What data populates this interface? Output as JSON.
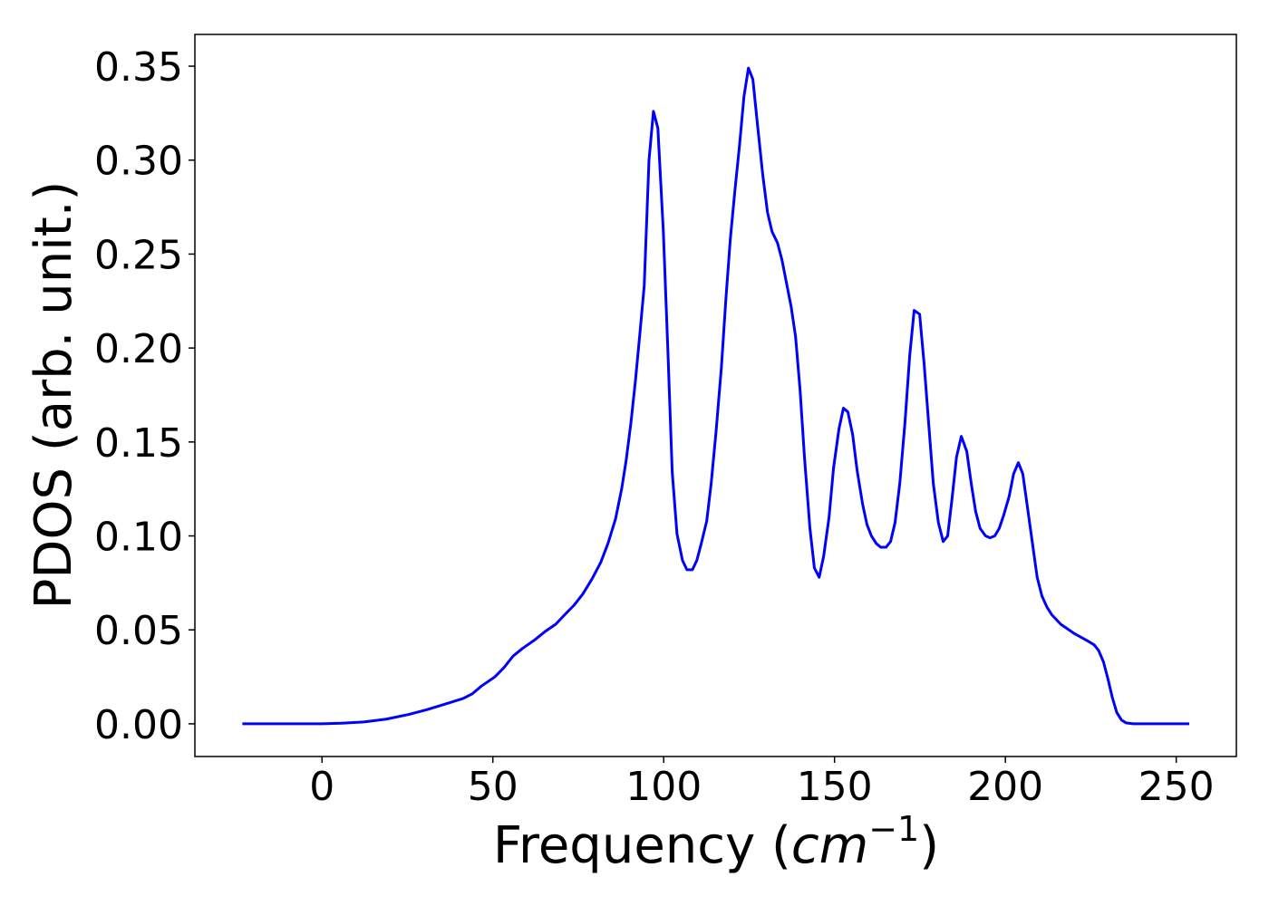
{
  "chart_data": {
    "type": "line",
    "xlabel": [
      "Frequency (",
      "cm",
      "−1",
      ")"
    ],
    "ylabel": "PDOS (arb. unit.)",
    "color": "#0000ff",
    "x": [
      -23.3,
      0,
      5.6,
      12.2,
      18.8,
      25.4,
      30.7,
      36.0,
      41.3,
      44.0,
      46.6,
      50.6,
      53.3,
      55.9,
      58.6,
      62.5,
      65.2,
      68.4,
      71.0,
      73.7,
      76.3,
      79.0,
      81.6,
      83.7,
      85.9,
      87.7,
      89.0,
      90.4,
      91.7,
      93.0,
      94.3,
      95.7,
      97.0,
      98.3,
      99.9,
      101.2,
      102.5,
      103.9,
      105.5,
      106.8,
      108.4,
      109.7,
      111.0,
      112.6,
      113.9,
      115.3,
      116.9,
      118.2,
      119.5,
      120.8,
      122.2,
      123.5,
      124.8,
      126.1,
      127.5,
      129.0,
      130.4,
      131.7,
      133.3,
      134.6,
      135.9,
      137.3,
      138.6,
      139.9,
      141.2,
      142.8,
      144.1,
      145.5,
      146.8,
      148.4,
      149.7,
      151.3,
      152.6,
      153.9,
      155.3,
      156.6,
      158.2,
      159.5,
      160.8,
      162.2,
      163.5,
      165.1,
      166.4,
      167.7,
      169.1,
      170.6,
      172.0,
      173.3,
      174.9,
      176.2,
      177.5,
      178.9,
      180.4,
      181.8,
      183.1,
      184.4,
      185.7,
      187.1,
      188.7,
      190.0,
      191.3,
      192.6,
      194.2,
      195.5,
      196.9,
      198.2,
      199.5,
      201.1,
      202.4,
      203.8,
      205.1,
      206.4,
      208.0,
      209.3,
      210.7,
      212.2,
      213.6,
      216.2,
      220.2,
      224.2,
      226.0,
      227.3,
      228.7,
      230.0,
      231.3,
      232.6,
      234.0,
      235.3,
      237.4,
      253.8
    ],
    "values": [
      0,
      0,
      0.0003,
      0.001,
      0.0025,
      0.005,
      0.0075,
      0.0105,
      0.0135,
      0.016,
      0.02,
      0.025,
      0.03,
      0.036,
      0.04,
      0.045,
      0.049,
      0.053,
      0.058,
      0.063,
      0.069,
      0.077,
      0.086,
      0.096,
      0.109,
      0.125,
      0.14,
      0.16,
      0.182,
      0.207,
      0.233,
      0.3,
      0.326,
      0.317,
      0.262,
      0.2,
      0.134,
      0.101,
      0.087,
      0.082,
      0.082,
      0.087,
      0.096,
      0.108,
      0.128,
      0.155,
      0.19,
      0.226,
      0.258,
      0.283,
      0.308,
      0.334,
      0.349,
      0.343,
      0.318,
      0.292,
      0.272,
      0.262,
      0.256,
      0.247,
      0.235,
      0.222,
      0.206,
      0.178,
      0.142,
      0.104,
      0.083,
      0.078,
      0.089,
      0.11,
      0.136,
      0.157,
      0.168,
      0.166,
      0.154,
      0.135,
      0.117,
      0.106,
      0.1,
      0.096,
      0.094,
      0.094,
      0.097,
      0.107,
      0.128,
      0.16,
      0.196,
      0.22,
      0.218,
      0.192,
      0.161,
      0.128,
      0.107,
      0.097,
      0.1,
      0.12,
      0.142,
      0.153,
      0.145,
      0.128,
      0.113,
      0.104,
      0.1,
      0.099,
      0.1,
      0.104,
      0.111,
      0.121,
      0.133,
      0.139,
      0.133,
      0.116,
      0.095,
      0.078,
      0.068,
      0.062,
      0.058,
      0.053,
      0.048,
      0.044,
      0.042,
      0.039,
      0.033,
      0.024,
      0.014,
      0.006,
      0.002,
      0.0005,
      0,
      0
    ],
    "xlim": [
      -37.2,
      267.6
    ],
    "ylim": [
      -0.0174,
      0.3669
    ],
    "xticks": [
      0,
      50,
      100,
      150,
      200,
      250
    ],
    "yticks": [
      {
        "value": 0,
        "label": "0.00"
      },
      {
        "value": 0.05,
        "label": "0.05"
      },
      {
        "value": 0.1,
        "label": "0.10"
      },
      {
        "value": 0.15,
        "label": "0.15"
      },
      {
        "value": 0.2,
        "label": "0.20"
      },
      {
        "value": 0.25,
        "label": "0.25"
      },
      {
        "value": 0.3,
        "label": "0.30"
      },
      {
        "value": 0.35,
        "label": "0.35"
      }
    ],
    "grid": false
  }
}
